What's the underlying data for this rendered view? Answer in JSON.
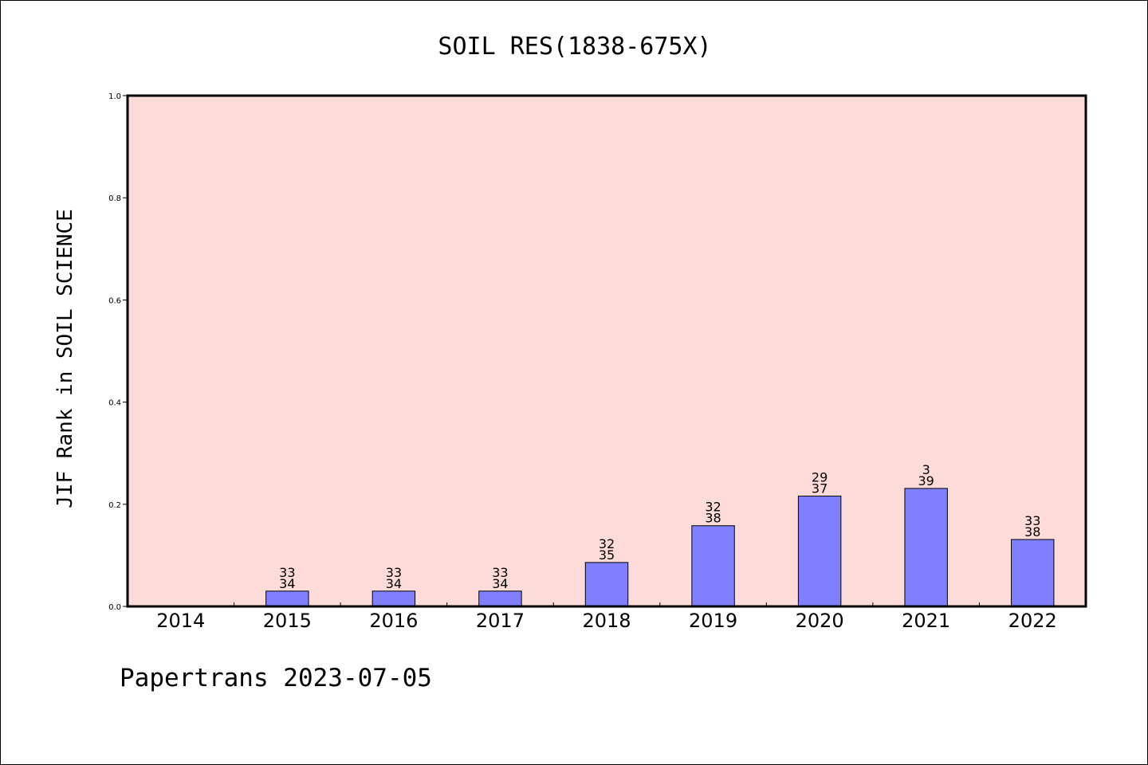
{
  "footer": {
    "text": "Papertrans 2023-07-05"
  },
  "colors": {
    "plot_background": "#fddbd8",
    "bar_fill": "#8080ff",
    "bar_edge": "#000000",
    "axis": "#000000"
  },
  "chart_data": {
    "type": "bar",
    "title": "SOIL RES(1838-675X)",
    "xlabel": "",
    "ylabel": "JIF Rank in SOIL SCIENCE",
    "ylim": [
      0,
      1.0
    ],
    "yticks": [
      "0.0",
      "0.2",
      "0.4",
      "0.6",
      "0.8",
      "1.0"
    ],
    "grid": false,
    "legend": "none",
    "categories": [
      "2014",
      "2015",
      "2016",
      "2017",
      "2018",
      "2019",
      "2020",
      "2021",
      "2022"
    ],
    "values": [
      null,
      0.03,
      0.03,
      0.03,
      0.086,
      0.158,
      0.216,
      0.231,
      0.131
    ],
    "labels": [
      null,
      [
        "33",
        "34"
      ],
      [
        "33",
        "34"
      ],
      [
        "33",
        "34"
      ],
      [
        "32",
        "35"
      ],
      [
        "32",
        "38"
      ],
      [
        "29",
        "37"
      ],
      [
        "3",
        "39"
      ],
      [
        "33",
        "38"
      ]
    ]
  }
}
